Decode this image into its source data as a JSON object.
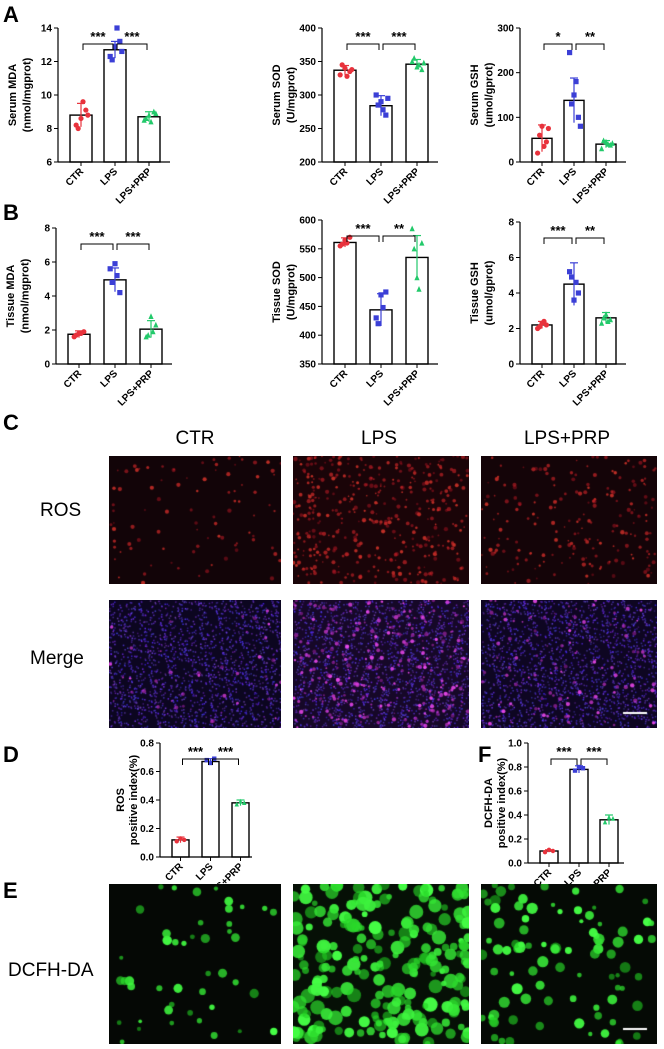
{
  "panel_letters": {
    "a": "A",
    "b": "B",
    "c": "C",
    "d": "D",
    "e": "E",
    "f": "F"
  },
  "microscopy": {
    "columns": [
      "CTR",
      "LPS",
      "LPS+PRP"
    ],
    "rows": [
      "ROS",
      "Merge"
    ],
    "e_row": "DCFH-DA"
  },
  "colors": {
    "ctr": "#e8323c",
    "lps": "#3b3fd6",
    "prp": "#22c96a"
  },
  "chart_data": [
    {
      "id": "serum-mda",
      "type": "bar",
      "categories": [
        "CTR",
        "LPS",
        "LPS+PRP"
      ],
      "values": [
        8.8,
        12.7,
        8.7
      ],
      "errors": [
        0.7,
        0.5,
        0.3
      ],
      "points": [
        [
          8.2,
          8.6,
          9.1,
          8.0,
          9.6,
          8.8
        ],
        [
          12.3,
          12.9,
          13.2,
          12.1,
          14.6,
          12.6
        ],
        [
          8.5,
          8.8,
          9.0,
          8.6,
          8.4,
          8.9
        ]
      ],
      "ylabel": [
        "Serum MDA",
        "(nmol/mgprot)"
      ],
      "ylim": [
        6,
        14
      ],
      "ticks": [
        6,
        8,
        10,
        12,
        14
      ],
      "sig": [
        {
          "from": 0,
          "to": 1,
          "label": "***"
        },
        {
          "from": 1,
          "to": 2,
          "label": "***"
        }
      ]
    },
    {
      "id": "serum-sod",
      "type": "bar",
      "categories": [
        "CTR",
        "LPS",
        "LPS+PRP"
      ],
      "values": [
        337,
        284,
        346
      ],
      "errors": [
        7,
        15,
        7
      ],
      "points": [
        [
          330,
          340,
          335,
          345,
          328,
          338
        ],
        [
          300,
          290,
          270,
          285,
          278,
          295
        ],
        [
          350,
          342,
          338,
          355,
          345,
          348
        ]
      ],
      "ylabel": [
        "Serum SOD",
        "(U/mgprot)"
      ],
      "ylim": [
        200,
        400
      ],
      "ticks": [
        200,
        250,
        300,
        350,
        400
      ],
      "sig": [
        {
          "from": 0,
          "to": 1,
          "label": "***"
        },
        {
          "from": 1,
          "to": 2,
          "label": "***"
        }
      ]
    },
    {
      "id": "serum-gsh",
      "type": "bar",
      "categories": [
        "CTR",
        "LPS",
        "LPS+PRP"
      ],
      "values": [
        53,
        138,
        40
      ],
      "errors": [
        30,
        50,
        8
      ],
      "points": [
        [
          20,
          80,
          45,
          60,
          35,
          75
        ],
        [
          245,
          150,
          100,
          130,
          180,
          80
        ],
        [
          30,
          45,
          38,
          48,
          40,
          42
        ]
      ],
      "ylabel": [
        "Serum GSH",
        "(umol/gprot)"
      ],
      "ylim": [
        0,
        300
      ],
      "ticks": [
        0,
        100,
        200,
        300
      ],
      "sig": [
        {
          "from": 0,
          "to": 1,
          "label": "*"
        },
        {
          "from": 1,
          "to": 2,
          "label": "**"
        }
      ]
    },
    {
      "id": "tissue-mda",
      "type": "bar",
      "categories": [
        "CTR",
        "LPS",
        "LPS+PRP"
      ],
      "values": [
        1.75,
        4.95,
        2.05
      ],
      "errors": [
        0.2,
        0.7,
        0.5
      ],
      "points": [
        [
          1.6,
          1.8,
          1.9,
          1.7,
          1.8
        ],
        [
          5.6,
          5.9,
          4.2,
          4.8,
          5.2
        ],
        [
          1.6,
          2.8,
          2.3,
          1.7,
          1.9
        ]
      ],
      "ylabel": [
        "Tissue MDA",
        "(nmol/mgprot)"
      ],
      "ylim": [
        0,
        8
      ],
      "ticks": [
        0,
        2,
        4,
        6,
        8
      ],
      "sig": [
        {
          "from": 0,
          "to": 1,
          "label": "***"
        },
        {
          "from": 1,
          "to": 2,
          "label": "***"
        }
      ]
    },
    {
      "id": "tissue-sod",
      "type": "bar",
      "categories": [
        "CTR",
        "LPS",
        "LPS+PRP"
      ],
      "values": [
        561,
        444,
        535
      ],
      "errors": [
        8,
        28,
        38
      ],
      "points": [
        [
          555,
          565,
          570,
          558,
          560
        ],
        [
          430,
          470,
          475,
          420,
          448
        ],
        [
          585,
          500,
          560,
          550,
          480
        ]
      ],
      "ylabel": [
        "Tissue SOD",
        "(U/mgprot)"
      ],
      "ylim": [
        350,
        600
      ],
      "ticks": [
        350,
        400,
        450,
        500,
        550,
        600
      ],
      "sig": [
        {
          "from": 0,
          "to": 1,
          "label": "***"
        },
        {
          "from": 1,
          "to": 2,
          "label": "**"
        }
      ]
    },
    {
      "id": "tissue-gsh",
      "type": "bar",
      "categories": [
        "CTR",
        "LPS",
        "LPS+PRP"
      ],
      "values": [
        2.2,
        4.5,
        2.6
      ],
      "errors": [
        0.2,
        1.2,
        0.3
      ],
      "points": [
        [
          2.0,
          2.3,
          2.2,
          2.1,
          2.4
        ],
        [
          5.2,
          3.6,
          4.0,
          4.9,
          4.6
        ],
        [
          2.3,
          2.8,
          2.5,
          2.6,
          2.4
        ]
      ],
      "ylabel": [
        "Tissue GSH",
        "(umol/gprot)"
      ],
      "ylim": [
        0,
        8
      ],
      "ticks": [
        0,
        2,
        4,
        6,
        8
      ],
      "sig": [
        {
          "from": 0,
          "to": 1,
          "label": "***"
        },
        {
          "from": 1,
          "to": 2,
          "label": "**"
        }
      ]
    },
    {
      "id": "ros-index",
      "type": "bar",
      "categories": [
        "CTR",
        "LPS",
        "LPS+PRP"
      ],
      "values": [
        0.12,
        0.67,
        0.38
      ],
      "errors": [
        0.02,
        0.02,
        0.02
      ],
      "points": [
        [
          0.11,
          0.13,
          0.12
        ],
        [
          0.68,
          0.66,
          0.69
        ],
        [
          0.37,
          0.39,
          0.38
        ]
      ],
      "ylabel": [
        "ROS",
        "positive index(%)"
      ],
      "ylim": [
        0,
        0.8
      ],
      "ticks": [
        "0.0",
        "0.2",
        "0.4",
        "0.6",
        "0.8"
      ],
      "sig": [
        {
          "from": 0,
          "to": 1,
          "label": "***"
        },
        {
          "from": 1,
          "to": 2,
          "label": "***"
        }
      ]
    },
    {
      "id": "dcfh-index",
      "type": "bar",
      "categories": [
        "CTR",
        "LPS",
        "LPS+PRP"
      ],
      "values": [
        0.1,
        0.78,
        0.36
      ],
      "errors": [
        0.01,
        0.03,
        0.04
      ],
      "points": [
        [
          0.09,
          0.11,
          0.1
        ],
        [
          0.77,
          0.8,
          0.79
        ],
        [
          0.34,
          0.38,
          0.37
        ]
      ],
      "ylabel": [
        "DCFH-DA",
        "positive index(%)"
      ],
      "ylim": [
        0,
        1.0
      ],
      "ticks": [
        "0.0",
        "0.2",
        "0.4",
        "0.6",
        "0.8",
        "1.0"
      ],
      "sig": [
        {
          "from": 0,
          "to": 1,
          "label": "***"
        },
        {
          "from": 1,
          "to": 2,
          "label": "***"
        }
      ]
    }
  ]
}
